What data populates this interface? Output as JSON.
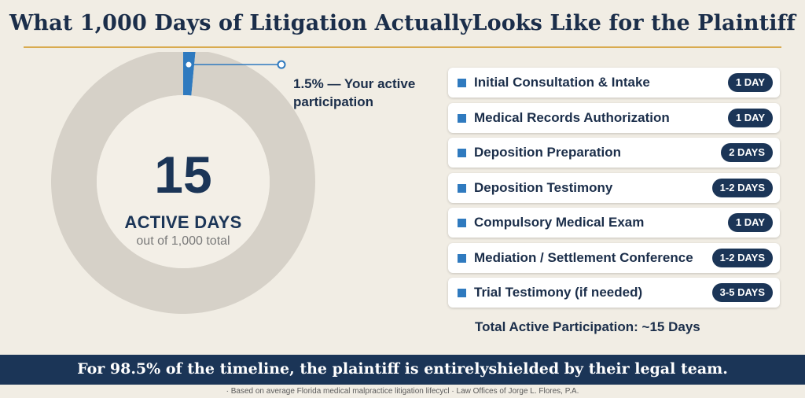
{
  "title": "What 1,000 Days of Litigation ActuallyLooks Like for the Plaintiff",
  "chart_data": {
    "type": "pie",
    "style": "donut",
    "total_days": 1000,
    "active_days": 15,
    "slices": [
      {
        "name": "1.5% — Your active participation",
        "value": 1.5,
        "color": "#2f7abf"
      },
      {
        "value": 98.5,
        "color": "#d6d1c8"
      }
    ],
    "callout": "1.5% — Your active participation",
    "center_value": "15",
    "center_label": "ACTIVE DAYS",
    "center_sub": "out of 1,000 total"
  },
  "tasks": [
    {
      "label": "Initial Consultation & Intake",
      "duration": "1 DAY"
    },
    {
      "label": "Medical Records Authorization",
      "duration": "1 DAY"
    },
    {
      "label": "Deposition Preparation",
      "duration": "2 DAYS"
    },
    {
      "label": "Deposition Testimony",
      "duration": "1-2 DAYS"
    },
    {
      "label": "Compulsory Medical Exam",
      "duration": "1 DAY"
    },
    {
      "label": "Mediation / Settlement Conference",
      "duration": "1-2 DAYS"
    },
    {
      "label": "Trial Testimony (if needed)",
      "duration": "3-5 DAYS"
    }
  ],
  "total_label": "Total Active Participation: ~15 Days",
  "banner": "For 98.5% of the timeline, the plaintiff is entirelyshielded by their legal team.",
  "footnote": "· Based on average Florida medical malpractice litigation lifecycl · Law Offices of Jorge L. Flores, P.A.",
  "colors": {
    "navy": "#1b3557",
    "accent_blue": "#2f7abf",
    "gold_rule": "#d9ab4f",
    "ring_gray": "#d6d1c8",
    "background": "#f1ede4"
  }
}
